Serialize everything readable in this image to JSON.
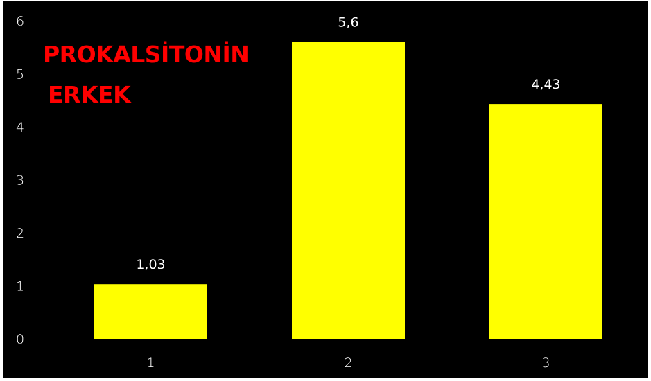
{
  "chart_data": {
    "type": "bar",
    "title_lines": [
      "PROKALSİTONİN",
      "ERKEK"
    ],
    "categories": [
      "1",
      "2",
      "3"
    ],
    "values": [
      1.03,
      5.6,
      4.43
    ],
    "data_labels": [
      "1,03",
      "5,6",
      "4,43"
    ],
    "y_ticks": [
      "0",
      "1",
      "2",
      "3",
      "4",
      "5",
      "6"
    ],
    "ylim": [
      0,
      6
    ],
    "grid": false,
    "legend": "none",
    "bar_color": "#ffff00",
    "background_color": "#000000",
    "title_color": "#ff0000",
    "text_color": "#ffffff"
  }
}
